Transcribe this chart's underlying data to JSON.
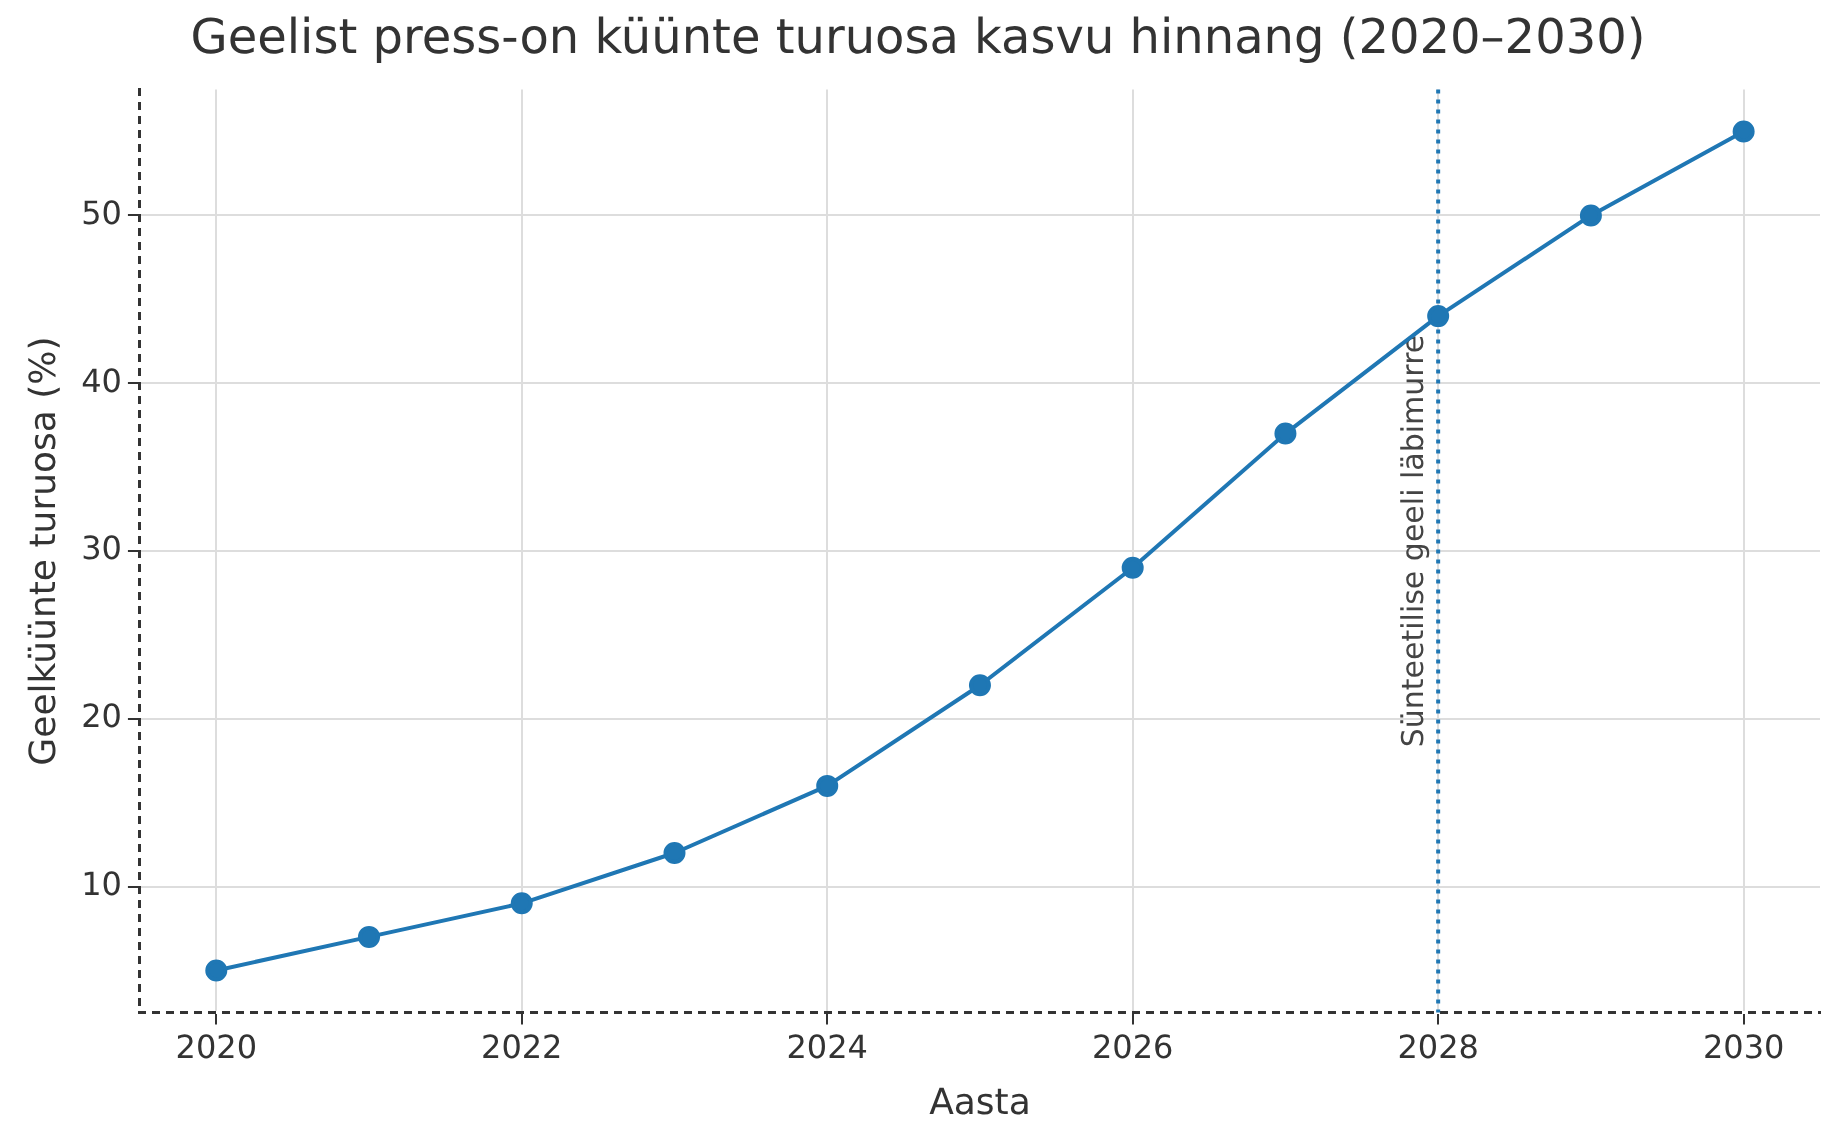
{
  "chart_data": {
    "type": "line",
    "title": "Geelist press-on küünte turuosa kasvu hinnang (2020–2030)",
    "xlabel": "Aasta",
    "ylabel": "Geelküünte turuosa (%)",
    "x": [
      2020,
      2021,
      2022,
      2023,
      2024,
      2025,
      2026,
      2027,
      2028,
      2029,
      2030
    ],
    "series": [
      {
        "color": "#1f77b4",
        "values": [
          5,
          7,
          9,
          12,
          16,
          22,
          29,
          37,
          44,
          50,
          55
        ]
      }
    ],
    "xlim": [
      2019.5,
      2030.5
    ],
    "xticks": [
      2020,
      2022,
      2024,
      2026,
      2028,
      2030
    ],
    "ylim": [
      2.5,
      57.5
    ],
    "yticks": [
      10,
      20,
      30,
      40,
      50
    ],
    "ref_lines": [
      {
        "axis": "x",
        "value": 2028,
        "label": "Sünteetilise geeli läbimurre",
        "color": "#1f77b4",
        "line_style": "dotted"
      }
    ],
    "grid": true,
    "legend": false,
    "marker": "circle",
    "line_style": "solid"
  }
}
